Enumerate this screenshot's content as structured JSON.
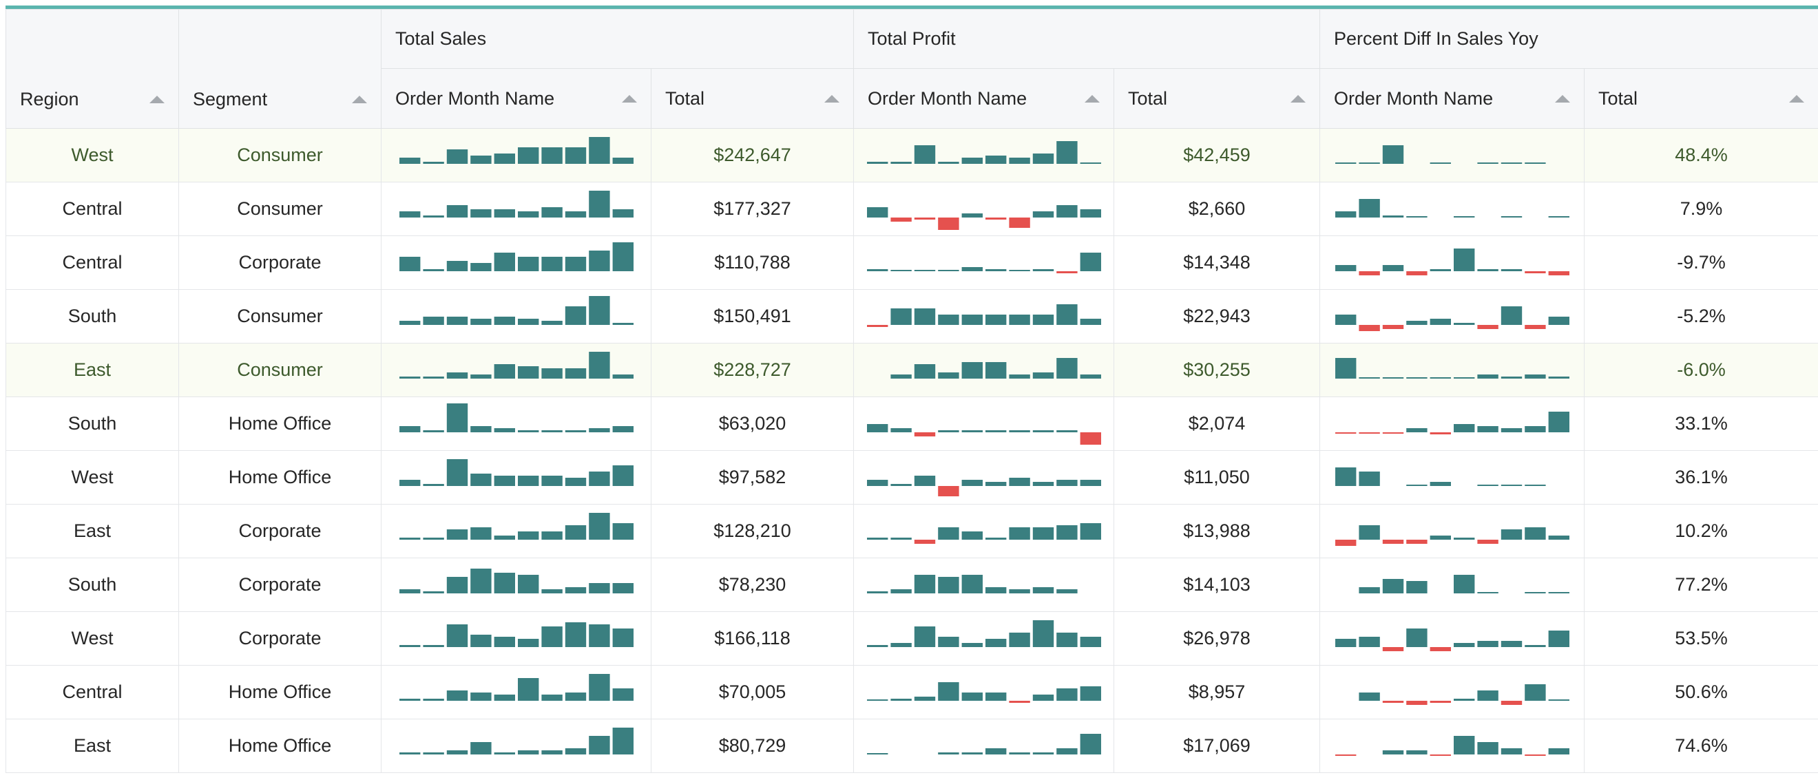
{
  "colors": {
    "accent": "#5bb5ae",
    "positive_bar": "#3a7f80",
    "negative_bar": "#e5514e",
    "highlight_row": "#fafcf3",
    "highlight_text": "#3d5a2c"
  },
  "header": {
    "region": "Region",
    "segment": "Segment",
    "groups": [
      "Total Sales",
      "Total Profit",
      "Percent Diff In Sales Yoy"
    ],
    "sub_month": "Order Month Name",
    "sub_total": "Total",
    "sort_icon": "sort-ascending-icon"
  },
  "rows": [
    {
      "region": "West",
      "segment": "Consumer",
      "sales_total": "$242,647",
      "profit_total": "$42,459",
      "pct_total": "48.4%",
      "highlight": true,
      "sales_spark": [
        3,
        1,
        7,
        4,
        5,
        8,
        8,
        8,
        13,
        3
      ],
      "profit_spark": [
        1,
        1,
        9,
        1,
        3,
        4,
        3,
        5,
        11,
        0.5
      ],
      "pct_spark": [
        0.5,
        0.5,
        9,
        null,
        0.5,
        null,
        0.5,
        0.5,
        0.5,
        null
      ]
    },
    {
      "region": "Central",
      "segment": "Consumer",
      "sales_total": "$177,327",
      "profit_total": "$2,660",
      "pct_total": "7.9%",
      "highlight": false,
      "sales_spark": [
        3,
        1,
        6,
        4,
        4,
        3,
        5,
        3,
        13,
        4
      ],
      "profit_spark": [
        5,
        -2,
        -1,
        -6,
        2,
        -1,
        -5,
        3,
        6,
        4
      ],
      "pct_spark": [
        3,
        9,
        1,
        0.5,
        null,
        0.5,
        null,
        0.5,
        null,
        0.5
      ]
    },
    {
      "region": "Central",
      "segment": "Corporate",
      "sales_total": "$110,788",
      "profit_total": "$14,348",
      "pct_total": "-9.7%",
      "highlight": false,
      "sales_spark": [
        7,
        1,
        5,
        4,
        9,
        7,
        7,
        7,
        10,
        14
      ],
      "profit_spark": [
        1,
        0.5,
        0.5,
        0.5,
        2,
        1,
        0.5,
        1,
        -1,
        9
      ],
      "pct_spark": [
        3,
        -2,
        3,
        -2,
        1,
        11,
        1,
        1,
        -1,
        -2
      ]
    },
    {
      "region": "South",
      "segment": "Consumer",
      "sales_total": "$150,491",
      "profit_total": "$22,943",
      "pct_total": "-5.2%",
      "highlight": false,
      "sales_spark": [
        2,
        4,
        4,
        3,
        4,
        3,
        2,
        9,
        14,
        1
      ],
      "profit_spark": [
        -1,
        8,
        8,
        5,
        5,
        5,
        5,
        5,
        10,
        3
      ],
      "pct_spark": [
        5,
        -3,
        -2,
        2,
        3,
        1,
        -2,
        9,
        -2,
        4
      ]
    },
    {
      "region": "East",
      "segment": "Consumer",
      "sales_total": "$228,727",
      "profit_total": "$30,255",
      "pct_total": "-6.0%",
      "highlight": true,
      "sales_spark": [
        1,
        1,
        3,
        2,
        7,
        6,
        5,
        5,
        13,
        2
      ],
      "profit_spark": [
        null,
        2,
        7,
        3,
        8,
        8,
        2,
        3,
        10,
        2
      ],
      "pct_spark": [
        10,
        0.5,
        0.5,
        0.5,
        0.5,
        0.5,
        2,
        1,
        2,
        1
      ]
    },
    {
      "region": "South",
      "segment": "Home Office",
      "sales_total": "$63,020",
      "profit_total": "$2,074",
      "pct_total": "33.1%",
      "highlight": false,
      "sales_spark": [
        3,
        1,
        14,
        3,
        2,
        1,
        1,
        1,
        2,
        3
      ],
      "profit_spark": [
        4,
        2,
        -2,
        1,
        1,
        1,
        1,
        1,
        1,
        -6
      ],
      "pct_spark": [
        -0.5,
        -0.5,
        -0.5,
        2,
        -1,
        4,
        3,
        2,
        3,
        10
      ]
    },
    {
      "region": "West",
      "segment": "Home Office",
      "sales_total": "$97,582",
      "profit_total": "$11,050",
      "pct_total": "36.1%",
      "highlight": false,
      "sales_spark": [
        3,
        1,
        13,
        6,
        5,
        5,
        5,
        4,
        7,
        10
      ],
      "profit_spark": [
        3,
        1,
        5,
        -5,
        3,
        2,
        4,
        2,
        3,
        3
      ],
      "pct_spark": [
        9,
        7,
        null,
        0.5,
        2,
        null,
        0.5,
        0.5,
        0.5,
        null
      ]
    },
    {
      "region": "East",
      "segment": "Corporate",
      "sales_total": "$128,210",
      "profit_total": "$13,988",
      "pct_total": "10.2%",
      "highlight": false,
      "sales_spark": [
        1,
        1,
        5,
        6,
        2,
        4,
        4,
        7,
        13,
        8
      ],
      "profit_spark": [
        1,
        1,
        -2,
        6,
        4,
        1,
        6,
        6,
        7,
        8
      ],
      "pct_spark": [
        -3,
        7,
        -2,
        -2,
        2,
        1,
        -2,
        5,
        6,
        2
      ]
    },
    {
      "region": "South",
      "segment": "Corporate",
      "sales_total": "$78,230",
      "profit_total": "$14,103",
      "pct_total": "77.2%",
      "highlight": false,
      "sales_spark": [
        2,
        1,
        8,
        12,
        10,
        9,
        2,
        3,
        5,
        5
      ],
      "profit_spark": [
        1,
        2,
        9,
        8,
        9,
        3,
        2,
        3,
        2,
        null
      ],
      "pct_spark": [
        null,
        3,
        7,
        6,
        null,
        9,
        0.5,
        null,
        0.5,
        0.5
      ]
    },
    {
      "region": "West",
      "segment": "Corporate",
      "sales_total": "$166,118",
      "profit_total": "$26,978",
      "pct_total": "53.5%",
      "highlight": false,
      "sales_spark": [
        1,
        1,
        11,
        6,
        5,
        4,
        10,
        12,
        11,
        9
      ],
      "profit_spark": [
        1,
        2,
        10,
        5,
        2,
        4,
        7,
        13,
        7,
        5
      ],
      "pct_spark": [
        4,
        5,
        -2,
        9,
        -2,
        2,
        3,
        3,
        1,
        8
      ]
    },
    {
      "region": "Central",
      "segment": "Home Office",
      "sales_total": "$70,005",
      "profit_total": "$8,957",
      "pct_total": "50.6%",
      "highlight": false,
      "sales_spark": [
        1,
        1,
        5,
        4,
        3,
        11,
        3,
        4,
        13,
        6
      ],
      "profit_spark": [
        0.5,
        1,
        2,
        9,
        4,
        4,
        -1,
        3,
        6,
        7
      ],
      "pct_spark": [
        null,
        4,
        -1,
        -2,
        -1,
        1,
        5,
        -2,
        8,
        0.5
      ]
    },
    {
      "region": "East",
      "segment": "Home Office",
      "sales_total": "$80,729",
      "profit_total": "$17,069",
      "pct_total": "74.6%",
      "highlight": false,
      "sales_spark": [
        1,
        1,
        2,
        6,
        1,
        2,
        2,
        3,
        9,
        13
      ],
      "profit_spark": [
        0.5,
        null,
        null,
        1,
        1,
        3,
        1,
        1,
        3,
        10
      ],
      "pct_spark": [
        -0.5,
        null,
        2,
        2,
        -0.5,
        9,
        6,
        3,
        -0.5,
        3
      ]
    }
  ]
}
